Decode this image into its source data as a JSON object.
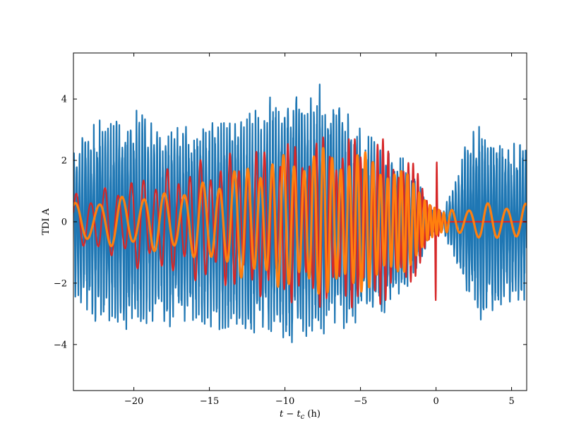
{
  "chart_data": {
    "type": "line",
    "title": "",
    "xlabel_parts": {
      "var": "t",
      "op": " − ",
      "var2": "t",
      "sub": "c",
      "unit": " (h)"
    },
    "ylabel": "TDI A",
    "xlim": [
      -24,
      6
    ],
    "ylim": [
      -5.5,
      5.5
    ],
    "xticks": [
      -20,
      -15,
      -10,
      -5,
      0,
      5
    ],
    "xtick_labels": [
      "−20",
      "−15",
      "−10",
      "−5",
      "0",
      "5"
    ],
    "yticks": [
      -4,
      -2,
      0,
      2,
      4
    ],
    "ytick_labels": [
      "−4",
      "−2",
      "0",
      "2",
      "4"
    ],
    "grid": false,
    "legend": "none",
    "series": [
      {
        "color": "#1f77b4",
        "x": [
          -24,
          -23,
          -22,
          -21,
          -20,
          -19,
          -18,
          -17,
          -16,
          -15,
          -14,
          -13,
          -12,
          -11,
          -10,
          -9,
          -8,
          -7,
          -6,
          -5,
          -4,
          -3,
          -2,
          -1,
          -0.5,
          0,
          0.5,
          1,
          1.5,
          2,
          2.5,
          3,
          3.5,
          4,
          4.5,
          5,
          5.5,
          6
        ],
        "y_upper": [
          2.5,
          3.2,
          3.4,
          3.6,
          3.8,
          3.4,
          3.0,
          3.2,
          3.1,
          3.4,
          3.5,
          3.4,
          3.8,
          4.2,
          4.3,
          4.4,
          4.5,
          4.8,
          3.8,
          3.2,
          2.8,
          2.5,
          2.0,
          1.2,
          0.5,
          0.3,
          0.4,
          1.0,
          1.9,
          2.6,
          3.0,
          3.3,
          2.8,
          2.9,
          2.7,
          2.6,
          2.7,
          2.8
        ],
        "y_lower": [
          -2.6,
          -3.2,
          -3.4,
          -3.6,
          -3.7,
          -3.6,
          -3.5,
          -3.6,
          -3.5,
          -3.7,
          -3.8,
          -3.7,
          -3.9,
          -4.0,
          -4.1,
          -4.0,
          -3.9,
          -3.7,
          -3.5,
          -3.4,
          -3.2,
          -2.8,
          -2.2,
          -1.4,
          -0.6,
          -0.3,
          -0.4,
          -1.0,
          -1.9,
          -2.6,
          -3.1,
          -3.8,
          -3.3,
          -3.0,
          -2.9,
          -2.7,
          -2.8,
          -2.9
        ],
        "cycles_per_hour": 5.2
      },
      {
        "color": "#d62728",
        "x": [
          -24,
          -23,
          -22,
          -21,
          -20,
          -19,
          -18,
          -17,
          -16,
          -15,
          -14,
          -13,
          -12,
          -11,
          -10,
          -9,
          -8,
          -7,
          -6,
          -5,
          -4,
          -3,
          -2,
          -1,
          -0.5,
          -0.1,
          0,
          0.1,
          0.5,
          1,
          6
        ],
        "amplitude": [
          0.9,
          1.0,
          1.1,
          1.3,
          1.5,
          1.6,
          1.7,
          1.8,
          2.0,
          2.1,
          2.2,
          2.3,
          2.4,
          2.5,
          2.6,
          2.7,
          2.8,
          2.8,
          2.8,
          2.8,
          2.8,
          2.6,
          2.2,
          1.6,
          1.0,
          0.6,
          4.2,
          0.6,
          0.1,
          0.0,
          0.0
        ],
        "cycles_per_hour": [
          1.0,
          1.05,
          1.1,
          1.15,
          1.2,
          1.25,
          1.3,
          1.35,
          1.4,
          1.5,
          1.6,
          1.7,
          1.8,
          1.9,
          2.0,
          2.1,
          2.2,
          2.3,
          2.45,
          2.6,
          2.75,
          2.9,
          3.1,
          3.3,
          3.6,
          5.0,
          6.0,
          5.0,
          3.0,
          1.0,
          1.0
        ]
      },
      {
        "color": "#ff7f0e",
        "x": [
          -24,
          -22,
          -20,
          -18,
          -16,
          -15,
          -14,
          -13,
          -12,
          -11,
          -10,
          -9,
          -8,
          -7,
          -6,
          -5,
          -4,
          -3,
          -2,
          -1,
          -0.5,
          0,
          0.5,
          1,
          2,
          3,
          4,
          5,
          6
        ],
        "amplitude": [
          0.6,
          0.8,
          0.9,
          1.0,
          1.2,
          1.4,
          1.6,
          1.8,
          2.0,
          2.1,
          2.2,
          2.3,
          2.4,
          2.4,
          2.4,
          2.3,
          2.2,
          1.9,
          1.6,
          1.2,
          0.8,
          0.5,
          0.3,
          0.4,
          0.5,
          0.6,
          0.6,
          0.6,
          0.6
        ],
        "cycles_per_hour": [
          0.6,
          0.65,
          0.7,
          0.75,
          0.8,
          0.9,
          1.0,
          1.1,
          1.2,
          1.3,
          1.4,
          1.5,
          1.6,
          1.7,
          1.8,
          1.9,
          2.0,
          2.2,
          2.4,
          2.7,
          3.0,
          3.5,
          3.0,
          1.0,
          0.8,
          0.8,
          0.8,
          0.8,
          0.8
        ]
      }
    ]
  }
}
